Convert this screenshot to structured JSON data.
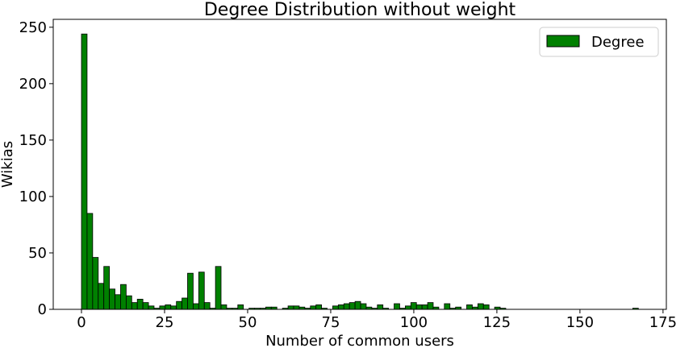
{
  "chart_data": {
    "type": "bar",
    "title": "Degree Distribution without weight",
    "xlabel": "Number of common users",
    "ylabel": "Wikias",
    "xlim": [
      -8.5,
      176
    ],
    "ylim": [
      0,
      257
    ],
    "xticks": [
      0,
      25,
      50,
      75,
      100,
      125,
      150,
      175
    ],
    "yticks": [
      0,
      50,
      100,
      150,
      200,
      250
    ],
    "grid": false,
    "legend_position": "top-right",
    "bin_width": 1.68,
    "series": [
      {
        "name": "Degree",
        "color": "#008000",
        "bins": [
          {
            "x": 0,
            "value": 244
          },
          {
            "x": 1.68,
            "value": 85
          },
          {
            "x": 3.36,
            "value": 46
          },
          {
            "x": 5.04,
            "value": 23
          },
          {
            "x": 6.72,
            "value": 38
          },
          {
            "x": 8.4,
            "value": 18
          },
          {
            "x": 10.08,
            "value": 13
          },
          {
            "x": 11.76,
            "value": 22
          },
          {
            "x": 13.44,
            "value": 12
          },
          {
            "x": 15.12,
            "value": 6
          },
          {
            "x": 16.8,
            "value": 9
          },
          {
            "x": 18.48,
            "value": 6
          },
          {
            "x": 20.16,
            "value": 3
          },
          {
            "x": 21.84,
            "value": 1
          },
          {
            "x": 23.52,
            "value": 3
          },
          {
            "x": 25.2,
            "value": 4
          },
          {
            "x": 26.88,
            "value": 3
          },
          {
            "x": 28.56,
            "value": 7
          },
          {
            "x": 30.24,
            "value": 10
          },
          {
            "x": 31.92,
            "value": 32
          },
          {
            "x": 33.6,
            "value": 5
          },
          {
            "x": 35.28,
            "value": 33
          },
          {
            "x": 36.96,
            "value": 6
          },
          {
            "x": 38.64,
            "value": 1
          },
          {
            "x": 40.32,
            "value": 38
          },
          {
            "x": 42.0,
            "value": 4
          },
          {
            "x": 43.68,
            "value": 1
          },
          {
            "x": 45.36,
            "value": 1
          },
          {
            "x": 47.04,
            "value": 4
          },
          {
            "x": 48.72,
            "value": 0
          },
          {
            "x": 50.4,
            "value": 1
          },
          {
            "x": 52.08,
            "value": 1
          },
          {
            "x": 53.76,
            "value": 1
          },
          {
            "x": 55.44,
            "value": 2
          },
          {
            "x": 57.12,
            "value": 2
          },
          {
            "x": 58.8,
            "value": 0
          },
          {
            "x": 60.48,
            "value": 1
          },
          {
            "x": 62.16,
            "value": 3
          },
          {
            "x": 63.84,
            "value": 3
          },
          {
            "x": 65.52,
            "value": 2
          },
          {
            "x": 67.2,
            "value": 1
          },
          {
            "x": 68.88,
            "value": 3
          },
          {
            "x": 70.56,
            "value": 4
          },
          {
            "x": 72.24,
            "value": 1
          },
          {
            "x": 73.92,
            "value": 0
          },
          {
            "x": 75.6,
            "value": 3
          },
          {
            "x": 77.28,
            "value": 4
          },
          {
            "x": 78.96,
            "value": 5
          },
          {
            "x": 80.64,
            "value": 6
          },
          {
            "x": 82.32,
            "value": 7
          },
          {
            "x": 84.0,
            "value": 5
          },
          {
            "x": 85.68,
            "value": 2
          },
          {
            "x": 87.36,
            "value": 1
          },
          {
            "x": 89.04,
            "value": 4
          },
          {
            "x": 90.72,
            "value": 1
          },
          {
            "x": 92.4,
            "value": 0
          },
          {
            "x": 94.08,
            "value": 5
          },
          {
            "x": 95.76,
            "value": 1
          },
          {
            "x": 97.44,
            "value": 3
          },
          {
            "x": 99.12,
            "value": 6
          },
          {
            "x": 100.8,
            "value": 4
          },
          {
            "x": 102.48,
            "value": 4
          },
          {
            "x": 104.16,
            "value": 6
          },
          {
            "x": 105.84,
            "value": 2
          },
          {
            "x": 107.52,
            "value": 0
          },
          {
            "x": 109.2,
            "value": 5
          },
          {
            "x": 110.88,
            "value": 1
          },
          {
            "x": 112.56,
            "value": 2
          },
          {
            "x": 114.24,
            "value": 0
          },
          {
            "x": 115.92,
            "value": 4
          },
          {
            "x": 117.6,
            "value": 2
          },
          {
            "x": 119.28,
            "value": 5
          },
          {
            "x": 120.96,
            "value": 4
          },
          {
            "x": 122.64,
            "value": 0
          },
          {
            "x": 124.32,
            "value": 2
          },
          {
            "x": 126.0,
            "value": 1
          },
          {
            "x": 165.9,
            "value": 1
          }
        ]
      }
    ]
  }
}
